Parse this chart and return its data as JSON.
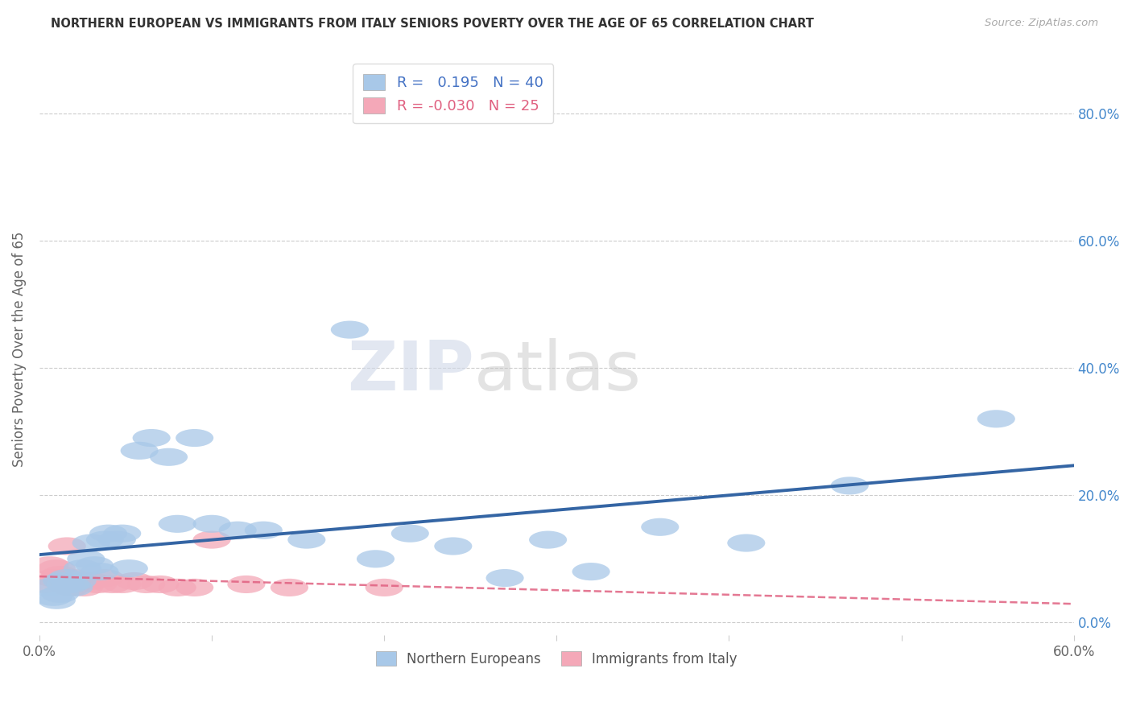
{
  "title": "NORTHERN EUROPEAN VS IMMIGRANTS FROM ITALY SENIORS POVERTY OVER THE AGE OF 65 CORRELATION CHART",
  "source": "Source: ZipAtlas.com",
  "ylabel": "Seniors Poverty Over the Age of 65",
  "xlim": [
    0.0,
    0.6
  ],
  "ylim": [
    -0.02,
    0.88
  ],
  "ytick_pos": [
    0.0,
    0.2,
    0.4,
    0.6,
    0.8
  ],
  "ytick_labels_right": [
    "0.0%",
    "20.0%",
    "40.0%",
    "60.0%",
    "80.0%"
  ],
  "xtick_pos": [
    0.0,
    0.1,
    0.2,
    0.3,
    0.4,
    0.5,
    0.6
  ],
  "xtick_labels": [
    "0.0%",
    "",
    "",
    "",
    "",
    "",
    "60.0%"
  ],
  "blue_R": 0.195,
  "blue_N": 40,
  "pink_R": -0.03,
  "pink_N": 25,
  "blue_color": "#A8C8E8",
  "pink_color": "#F4A8B8",
  "blue_line_color": "#3465A4",
  "pink_line_color": "#E06080",
  "watermark_zip": "ZIP",
  "watermark_atlas": "atlas",
  "blue_x": [
    0.005,
    0.008,
    0.01,
    0.012,
    0.013,
    0.015,
    0.016,
    0.018,
    0.02,
    0.022,
    0.025,
    0.027,
    0.03,
    0.032,
    0.035,
    0.038,
    0.04,
    0.045,
    0.048,
    0.052,
    0.058,
    0.065,
    0.075,
    0.08,
    0.09,
    0.1,
    0.115,
    0.13,
    0.155,
    0.18,
    0.195,
    0.215,
    0.24,
    0.27,
    0.295,
    0.32,
    0.36,
    0.41,
    0.47,
    0.555
  ],
  "blue_y": [
    0.055,
    0.04,
    0.035,
    0.045,
    0.065,
    0.06,
    0.07,
    0.06,
    0.055,
    0.065,
    0.085,
    0.1,
    0.125,
    0.09,
    0.08,
    0.13,
    0.14,
    0.13,
    0.14,
    0.085,
    0.27,
    0.29,
    0.26,
    0.155,
    0.29,
    0.155,
    0.145,
    0.145,
    0.13,
    0.46,
    0.1,
    0.14,
    0.12,
    0.07,
    0.13,
    0.08,
    0.15,
    0.125,
    0.215,
    0.32
  ],
  "pink_x": [
    0.003,
    0.006,
    0.008,
    0.01,
    0.012,
    0.014,
    0.016,
    0.018,
    0.02,
    0.023,
    0.026,
    0.03,
    0.034,
    0.038,
    0.042,
    0.048,
    0.055,
    0.062,
    0.07,
    0.08,
    0.09,
    0.1,
    0.12,
    0.145,
    0.2
  ],
  "pink_y": [
    0.06,
    0.09,
    0.07,
    0.085,
    0.075,
    0.065,
    0.12,
    0.055,
    0.07,
    0.065,
    0.055,
    0.065,
    0.06,
    0.07,
    0.06,
    0.06,
    0.065,
    0.06,
    0.06,
    0.055,
    0.055,
    0.13,
    0.06,
    0.055,
    0.055
  ]
}
